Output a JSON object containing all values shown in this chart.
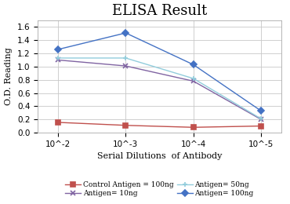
{
  "title": "ELISA Result",
  "xlabel": "Serial Dilutions  of Antibody",
  "ylabel": "O.D. Reading",
  "x_labels": [
    "10^-2",
    "10^-3",
    "10^-4",
    "10^-5"
  ],
  "series": [
    {
      "label": "Control Antigen = 100ng",
      "color": "#c0504d",
      "marker": "s",
      "markersize": 4,
      "values": [
        0.155,
        0.11,
        0.08,
        0.1
      ]
    },
    {
      "label": "Antigen= 10ng",
      "color": "#8064a2",
      "marker": "x",
      "markersize": 5,
      "values": [
        1.1,
        1.01,
        0.78,
        0.2
      ]
    },
    {
      "label": "Antigen= 50ng",
      "color": "#92cddc",
      "marker": "+",
      "markersize": 5,
      "values": [
        1.13,
        1.13,
        0.82,
        0.21
      ]
    },
    {
      "label": "Antigen= 100ng",
      "color": "#4472c4",
      "marker": "D",
      "markersize": 4,
      "values": [
        1.26,
        1.51,
        1.03,
        0.33
      ]
    }
  ],
  "ylim": [
    0,
    1.7
  ],
  "yticks": [
    0.0,
    0.2,
    0.4,
    0.6,
    0.8,
    1.0,
    1.2,
    1.4,
    1.6
  ],
  "bg_color": "#ffffff",
  "grid_color": "#c8c8c8",
  "title_fontsize": 13,
  "label_fontsize": 8,
  "legend_fontsize": 6.5,
  "tick_fontsize": 7.5
}
